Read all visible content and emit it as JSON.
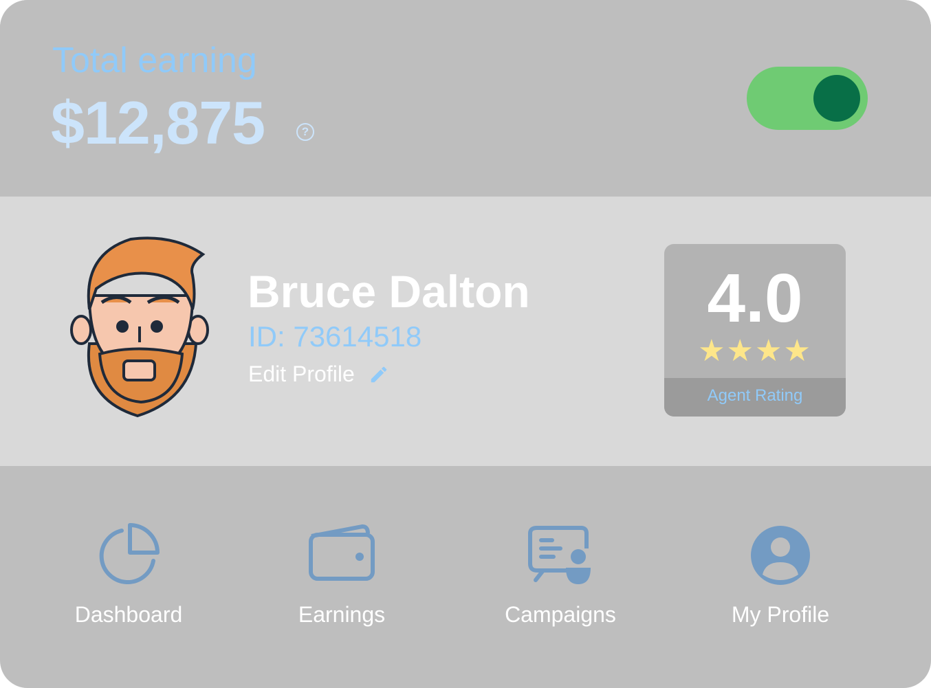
{
  "earnings": {
    "title": "Total earning",
    "amount": "$12,875",
    "help_icon": "question-circle-icon",
    "help_glyph": "?",
    "toggle_on": true
  },
  "profile": {
    "name": "Bruce Dalton",
    "id": "ID: 73614518",
    "edit_label": "Edit Profile",
    "edit_icon": "pencil-icon"
  },
  "rating": {
    "value": "4.0",
    "stars": 4,
    "star_glyphs": "★★★★",
    "label": "Agent Rating"
  },
  "nav": [
    {
      "label": "Dashboard",
      "icon": "pie-chart-icon"
    },
    {
      "label": "Earnings",
      "icon": "wallet-icon"
    },
    {
      "label": "Campaigns",
      "icon": "campaign-presentation-icon"
    },
    {
      "label": "My Profile",
      "icon": "user-circle-icon"
    }
  ],
  "colors": {
    "accent": "#90caf9",
    "icon": "#739bc3",
    "toggle_track": "#6fcb73",
    "toggle_knob": "#086f47",
    "star": "#fde68a"
  }
}
